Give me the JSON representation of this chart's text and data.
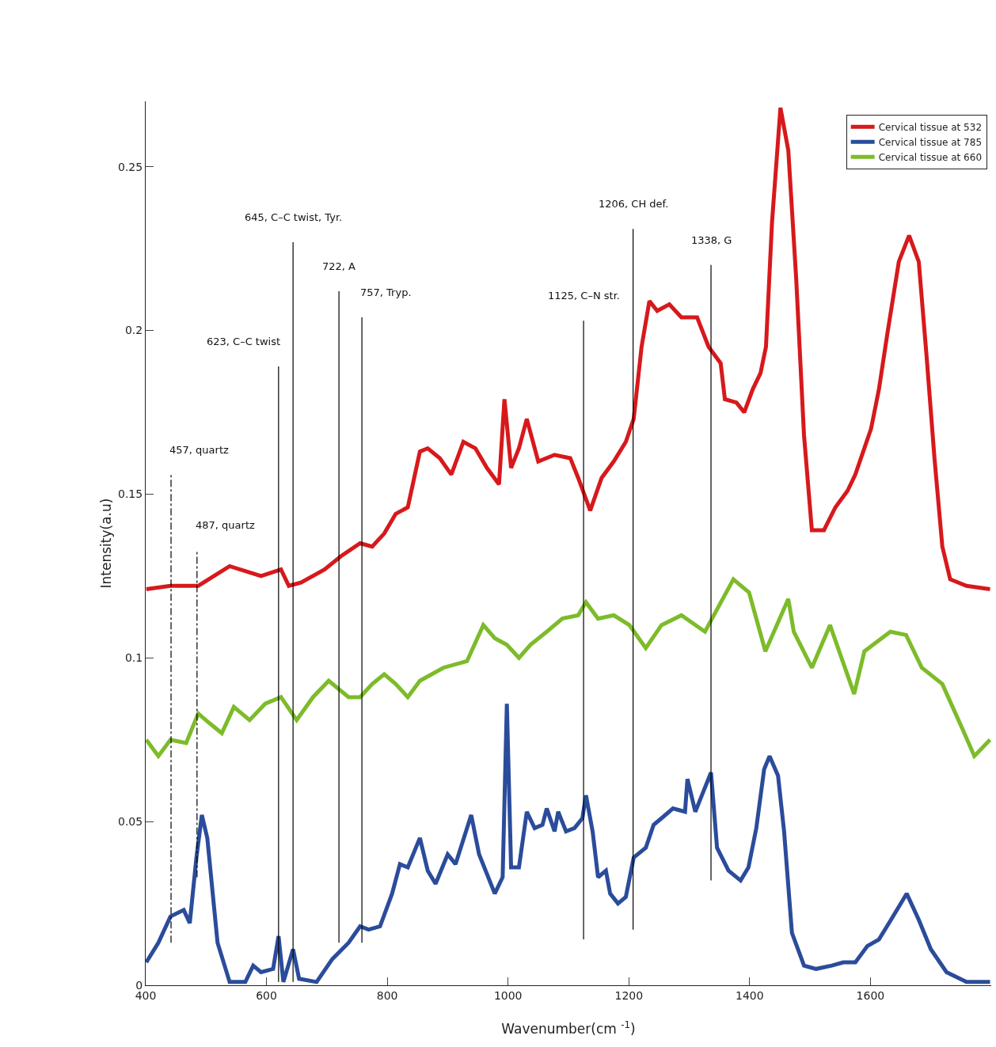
{
  "chart_data": {
    "type": "line",
    "xlabel": "Wavenumber(cm $^{-1}$)",
    "ylabel": "Intensity(a.u)",
    "xlim": [
      400,
      1800
    ],
    "xticks": [
      400,
      600,
      800,
      1000,
      1200,
      1400,
      1600
    ],
    "ylim": [
      0,
      0.27
    ],
    "yticks": [
      0,
      0.05,
      0.1,
      0.15,
      0.2,
      0.25
    ],
    "grid": false,
    "legend": "top right",
    "marker": "none",
    "line_style": "solid",
    "series": [
      {
        "name": "Cervical tissue at 532",
        "color": "#d7191c",
        "x": [
          401,
          441,
          487,
          539,
          591,
          624,
          637,
          657,
          696,
          723,
          755,
          775,
          795,
          814,
          834,
          854,
          867,
          887,
          906,
          926,
          946,
          965,
          985,
          994,
          1005,
          1018,
          1031,
          1050,
          1077,
          1103,
          1116,
          1136,
          1155,
          1175,
          1195,
          1208,
          1221,
          1234,
          1247,
          1267,
          1287,
          1313,
          1332,
          1352,
          1359,
          1378,
          1391,
          1405,
          1418,
          1427,
          1437,
          1451,
          1464,
          1477,
          1490,
          1503,
          1523,
          1542,
          1562,
          1575,
          1588,
          1601,
          1614,
          1628,
          1647,
          1664,
          1680,
          1693,
          1706,
          1719,
          1732,
          1759,
          1798
        ],
        "values": [
          0.121,
          0.122,
          0.122,
          0.128,
          0.125,
          0.127,
          0.122,
          0.123,
          0.127,
          0.131,
          0.135,
          0.134,
          0.138,
          0.144,
          0.146,
          0.163,
          0.164,
          0.161,
          0.156,
          0.166,
          0.164,
          0.158,
          0.153,
          0.179,
          0.158,
          0.164,
          0.173,
          0.16,
          0.162,
          0.161,
          0.155,
          0.145,
          0.155,
          0.16,
          0.166,
          0.173,
          0.195,
          0.209,
          0.206,
          0.208,
          0.204,
          0.204,
          0.195,
          0.19,
          0.179,
          0.178,
          0.175,
          0.182,
          0.187,
          0.195,
          0.233,
          0.268,
          0.255,
          0.216,
          0.168,
          0.139,
          0.139,
          0.146,
          0.151,
          0.156,
          0.163,
          0.17,
          0.182,
          0.199,
          0.221,
          0.229,
          0.221,
          0.192,
          0.161,
          0.134,
          0.124,
          0.122,
          0.121
        ]
      },
      {
        "name": "Cervical tissue at 785",
        "color": "#2b4c9b",
        "x": [
          401,
          421,
          441,
          463,
          473,
          484,
          493,
          502,
          519,
          539,
          565,
          578,
          591,
          611,
          620,
          628,
          644,
          654,
          683,
          709,
          736,
          755,
          769,
          788,
          808,
          821,
          834,
          854,
          867,
          880,
          900,
          913,
          932,
          939,
          952,
          978,
          991,
          998,
          1005,
          1018,
          1031,
          1044,
          1057,
          1064,
          1077,
          1083,
          1096,
          1110,
          1123,
          1129,
          1140,
          1149,
          1162,
          1169,
          1182,
          1195,
          1208,
          1228,
          1241,
          1254,
          1273,
          1293,
          1297,
          1310,
          1336,
          1346,
          1365,
          1385,
          1398,
          1411,
          1424,
          1433,
          1447,
          1457,
          1470,
          1490,
          1510,
          1536,
          1555,
          1575,
          1595,
          1614,
          1634,
          1660,
          1680,
          1700,
          1726,
          1759,
          1798
        ],
        "values": [
          0.007,
          0.013,
          0.021,
          0.023,
          0.019,
          0.039,
          0.052,
          0.045,
          0.013,
          0.001,
          0.001,
          0.006,
          0.004,
          0.005,
          0.015,
          0.001,
          0.011,
          0.002,
          0.001,
          0.008,
          0.013,
          0.018,
          0.017,
          0.018,
          0.028,
          0.037,
          0.036,
          0.045,
          0.035,
          0.031,
          0.04,
          0.037,
          0.048,
          0.052,
          0.04,
          0.028,
          0.033,
          0.086,
          0.036,
          0.036,
          0.053,
          0.048,
          0.049,
          0.054,
          0.047,
          0.053,
          0.047,
          0.048,
          0.051,
          0.058,
          0.047,
          0.033,
          0.035,
          0.028,
          0.025,
          0.027,
          0.039,
          0.042,
          0.049,
          0.051,
          0.054,
          0.053,
          0.063,
          0.053,
          0.065,
          0.042,
          0.035,
          0.032,
          0.036,
          0.048,
          0.066,
          0.07,
          0.064,
          0.047,
          0.016,
          0.006,
          0.005,
          0.006,
          0.007,
          0.007,
          0.012,
          0.014,
          0.02,
          0.028,
          0.02,
          0.011,
          0.004,
          0.001,
          0.001
        ]
      },
      {
        "name": "Cervical tissue at 660",
        "color": "#7dbb2a",
        "x": [
          401,
          421,
          441,
          467,
          487,
          506,
          526,
          546,
          572,
          598,
          624,
          650,
          677,
          703,
          736,
          755,
          775,
          795,
          814,
          834,
          854,
          893,
          932,
          959,
          978,
          998,
          1018,
          1037,
          1064,
          1090,
          1116,
          1129,
          1149,
          1175,
          1201,
          1228,
          1254,
          1287,
          1326,
          1373,
          1399,
          1426,
          1464,
          1473,
          1503,
          1533,
          1573,
          1590,
          1633,
          1659,
          1685,
          1719,
          1753,
          1772,
          1798
        ],
        "values": [
          0.075,
          0.07,
          0.075,
          0.074,
          0.083,
          0.08,
          0.077,
          0.085,
          0.081,
          0.086,
          0.088,
          0.081,
          0.088,
          0.093,
          0.088,
          0.088,
          0.092,
          0.095,
          0.092,
          0.088,
          0.093,
          0.097,
          0.099,
          0.11,
          0.106,
          0.104,
          0.1,
          0.104,
          0.108,
          0.112,
          0.113,
          0.117,
          0.112,
          0.113,
          0.11,
          0.103,
          0.11,
          0.113,
          0.108,
          0.124,
          0.12,
          0.102,
          0.118,
          0.108,
          0.097,
          0.11,
          0.089,
          0.102,
          0.108,
          0.107,
          0.097,
          0.092,
          0.078,
          0.07,
          0.075
        ]
      },
      {
        "type": "line",
        "color": "#000000",
        "line_style": "dashed",
        "x": [
          442,
          442
        ],
        "values": [
          0.013,
          0.156
        ]
      },
      {
        "type": "line",
        "color": "#000000",
        "line_style": "dashed",
        "x": [
          485,
          485
        ],
        "values": [
          0.033,
          0.133
        ]
      },
      {
        "type": "line",
        "color": "#000000",
        "x": [
          620,
          620
        ],
        "values": [
          0.001,
          0.189
        ]
      },
      {
        "type": "line",
        "color": "#000000",
        "x": [
          644,
          644
        ],
        "values": [
          0.001,
          0.227
        ]
      },
      {
        "type": "line",
        "color": "#000000",
        "x": [
          720,
          720
        ],
        "values": [
          0.013,
          0.212
        ]
      },
      {
        "type": "line",
        "color": "#000000",
        "x": [
          758,
          758
        ],
        "values": [
          0.013,
          0.204
        ]
      },
      {
        "type": "line",
        "color": "#000000",
        "x": [
          1125,
          1125
        ],
        "values": [
          0.014,
          0.203
        ]
      },
      {
        "type": "line",
        "color": "#000000",
        "x": [
          1207,
          1207
        ],
        "values": [
          0.017,
          0.231
        ]
      },
      {
        "type": "line",
        "color": "#000000",
        "x": [
          1336,
          1336
        ],
        "values": [
          0.032,
          0.22
        ]
      }
    ],
    "annotations": [
      {
        "text": "457, quartz",
        "x": 442,
        "y": 0.156
      },
      {
        "text": "487, quartz",
        "x": 485,
        "y": 0.133
      },
      {
        "text": "623, C–C twist",
        "x": 620,
        "y": 0.189
      },
      {
        "text": "645, C–C twist, Tyr.",
        "x": 644,
        "y": 0.227
      },
      {
        "text": "722, A",
        "x": 720,
        "y": 0.212
      },
      {
        "text": "757, Tryp.",
        "x": 758,
        "y": 0.204
      },
      {
        "text": "1125, C–N str.",
        "x": 1125,
        "y": 0.203
      },
      {
        "text": "1206, CH def.",
        "x": 1207,
        "y": 0.231
      },
      {
        "text": "1338, G",
        "x": 1336,
        "y": 0.22
      }
    ]
  }
}
